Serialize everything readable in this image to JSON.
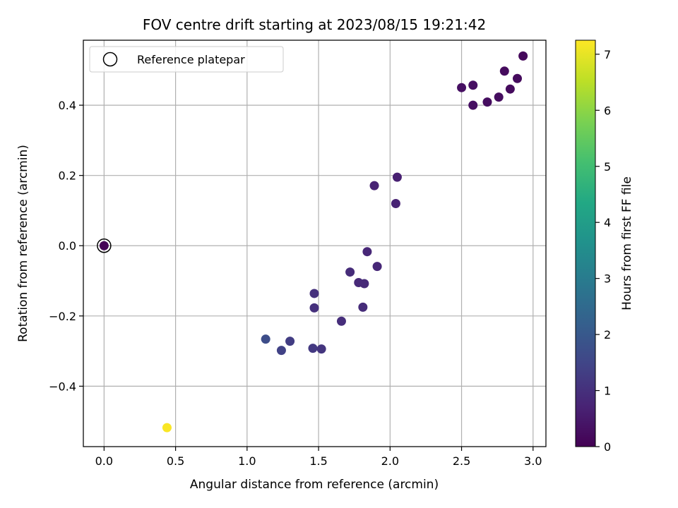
{
  "chart_data": {
    "type": "scatter",
    "title": "FOV centre drift starting at 2023/08/15 19:21:42",
    "xlabel": "Angular distance from reference (arcmin)",
    "ylabel": "Rotation from reference (arcmin)",
    "xlim": [
      -0.145,
      3.09
    ],
    "ylim": [
      -0.572,
      0.585
    ],
    "xticks": [
      "0.0",
      "0.5",
      "1.0",
      "1.5",
      "2.0",
      "2.5",
      "3.0"
    ],
    "xtick_values": [
      0.0,
      0.5,
      1.0,
      1.5,
      2.0,
      2.5,
      3.0
    ],
    "yticks": [
      "−0.4",
      "−0.2",
      "0.0",
      "0.2",
      "0.4"
    ],
    "ytick_values": [
      -0.4,
      -0.2,
      0.0,
      0.2,
      0.4
    ],
    "grid": true,
    "legend": {
      "label": "Reference platepar",
      "placement": "top-left"
    },
    "colorbar": {
      "label": "Hours from first FF file",
      "min": 0,
      "max": 7.25,
      "ticks": [
        "0",
        "1",
        "2",
        "3",
        "4",
        "5",
        "6",
        "7"
      ],
      "tick_values": [
        0,
        1,
        2,
        3,
        4,
        5,
        6,
        7
      ],
      "colormap": "viridis"
    },
    "reference_point": {
      "x": 0.0,
      "y": 0.0
    },
    "points": [
      {
        "x": 0.0,
        "y": 0.0,
        "hours": 0.05
      },
      {
        "x": 0.44,
        "y": -0.518,
        "hours": 7.2
      },
      {
        "x": 1.13,
        "y": -0.266,
        "hours": 1.7
      },
      {
        "x": 1.24,
        "y": -0.298,
        "hours": 1.4
      },
      {
        "x": 1.3,
        "y": -0.272,
        "hours": 1.3
      },
      {
        "x": 1.46,
        "y": -0.292,
        "hours": 1.2
      },
      {
        "x": 1.52,
        "y": -0.294,
        "hours": 1.1
      },
      {
        "x": 1.47,
        "y": -0.136,
        "hours": 1.0
      },
      {
        "x": 1.47,
        "y": -0.177,
        "hours": 1.0
      },
      {
        "x": 1.66,
        "y": -0.215,
        "hours": 0.95
      },
      {
        "x": 1.72,
        "y": -0.075,
        "hours": 0.9
      },
      {
        "x": 1.78,
        "y": -0.105,
        "hours": 0.85
      },
      {
        "x": 1.82,
        "y": -0.108,
        "hours": 0.85
      },
      {
        "x": 1.81,
        "y": -0.175,
        "hours": 0.9
      },
      {
        "x": 1.84,
        "y": -0.017,
        "hours": 0.8
      },
      {
        "x": 1.91,
        "y": -0.059,
        "hours": 0.8
      },
      {
        "x": 1.89,
        "y": 0.171,
        "hours": 0.7
      },
      {
        "x": 2.04,
        "y": 0.12,
        "hours": 0.7
      },
      {
        "x": 2.05,
        "y": 0.195,
        "hours": 0.65
      },
      {
        "x": 2.5,
        "y": 0.45,
        "hours": 0.3
      },
      {
        "x": 2.58,
        "y": 0.457,
        "hours": 0.3
      },
      {
        "x": 2.58,
        "y": 0.4,
        "hours": 0.3
      },
      {
        "x": 2.68,
        "y": 0.409,
        "hours": 0.25
      },
      {
        "x": 2.76,
        "y": 0.423,
        "hours": 0.25
      },
      {
        "x": 2.8,
        "y": 0.497,
        "hours": 0.2
      },
      {
        "x": 2.84,
        "y": 0.446,
        "hours": 0.2
      },
      {
        "x": 2.89,
        "y": 0.476,
        "hours": 0.2
      },
      {
        "x": 2.93,
        "y": 0.54,
        "hours": 0.15
      }
    ]
  }
}
